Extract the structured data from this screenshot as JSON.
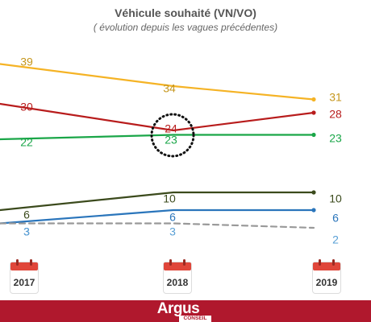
{
  "chart_data": {
    "type": "line",
    "title": "Véhicule souhaité (VN/VO)",
    "subtitle": "( évolution depuis les vagues précédentes)",
    "categories": [
      "2017",
      "2018",
      "2019"
    ],
    "series": [
      {
        "values": [
          39,
          34,
          31
        ],
        "color": "#f5b325"
      },
      {
        "values": [
          30,
          24,
          28
        ],
        "color": "#b81c1c"
      },
      {
        "values": [
          22,
          23,
          23
        ],
        "color": "#1aa648"
      },
      {
        "values": [
          6,
          10,
          10
        ],
        "color": "#3b4a1c"
      },
      {
        "values": [
          3,
          6,
          6
        ],
        "color": "#2a75bb"
      },
      {
        "values": [
          3,
          3,
          2
        ],
        "color": "#999999",
        "dashed": true
      }
    ]
  },
  "footer": {
    "brand": "Argus",
    "brand_sub": "CONSEIL"
  }
}
